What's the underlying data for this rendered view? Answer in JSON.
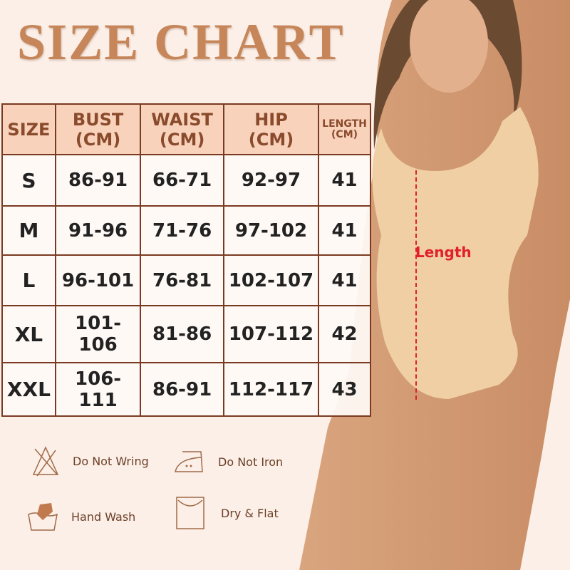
{
  "title": "SIZE CHART",
  "table": {
    "headers": [
      {
        "line1": "SIZE",
        "line2": ""
      },
      {
        "line1": "BUST",
        "line2": "(CM)"
      },
      {
        "line1": "WAIST",
        "line2": "(CM)"
      },
      {
        "line1": "HIP",
        "line2": "(CM)"
      },
      {
        "line1": "LENGTH",
        "line2": "(CM)"
      }
    ],
    "rows": [
      [
        "S",
        "86-91",
        "66-71",
        "92-97",
        "41"
      ],
      [
        "M",
        "91-96",
        "71-76",
        "97-102",
        "41"
      ],
      [
        "L",
        "96-101",
        "76-81",
        "102-107",
        "41"
      ],
      [
        "XL",
        "101-106",
        "81-86",
        "107-112",
        "42"
      ],
      [
        "XXL",
        "106-111",
        "86-91",
        "112-117",
        "43"
      ]
    ]
  },
  "care": [
    {
      "icon": "do-not-wring-icon",
      "label": "Do Not Wring"
    },
    {
      "icon": "do-not-iron-icon",
      "label": "Do Not Iron"
    },
    {
      "icon": "hand-wash-icon",
      "label": "Hand Wash"
    },
    {
      "icon": "dry-flat-icon",
      "label": "Dry & Flat"
    }
  ],
  "length_label": "Length",
  "colors": {
    "accent": "#c6865a",
    "header_bg": "#f8d2bb",
    "border": "#7a3a22",
    "length_marker": "#e0202a"
  }
}
